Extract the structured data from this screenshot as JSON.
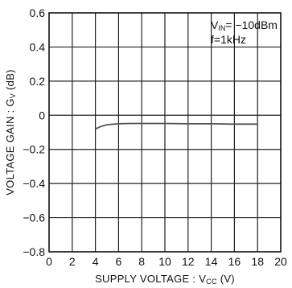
{
  "chart_data": {
    "type": "line",
    "xlabel": {
      "main": "SUPPLY VOLTAGE : V",
      "sub": "CC",
      "unit": " (V)"
    },
    "ylabel": {
      "main": "VOLTAGE GAIN : G",
      "sub": "V",
      "unit": " (dB)"
    },
    "xlim": [
      0,
      20
    ],
    "ylim": [
      -0.8,
      0.6
    ],
    "x_ticks": [
      "0",
      "2",
      "4",
      "6",
      "8",
      "10",
      "12",
      "14",
      "16",
      "18",
      "20"
    ],
    "y_ticks": [
      "0.6",
      "0.4",
      "0.2",
      "0",
      "−0.2",
      "−0.4",
      "−0.6",
      "−0.8"
    ],
    "grid": true,
    "annotations": [
      {
        "main": "V",
        "sub": "IN",
        "rest": "= −10dBm"
      },
      {
        "main": "f=1kHz",
        "sub": "",
        "rest": ""
      }
    ],
    "series": [
      {
        "x": [
          4,
          4.5,
          5,
          6,
          7,
          8,
          10,
          12,
          14,
          16,
          18
        ],
        "y": [
          -0.08,
          -0.065,
          -0.055,
          -0.05,
          -0.048,
          -0.048,
          -0.048,
          -0.05,
          -0.05,
          -0.052,
          -0.052
        ]
      }
    ]
  }
}
